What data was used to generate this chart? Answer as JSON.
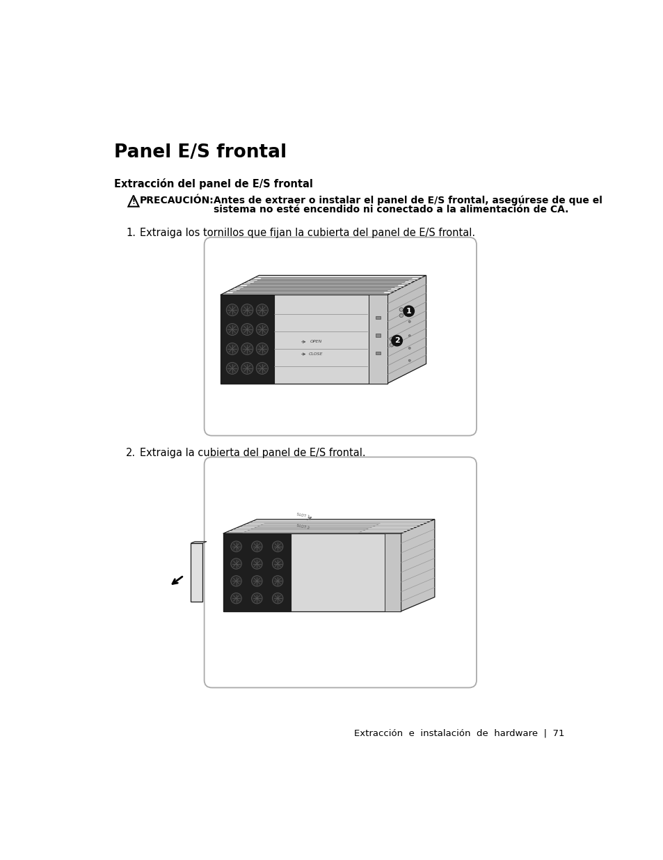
{
  "title": "Panel E/S frontal",
  "subtitle": "Extracción del panel de E/S frontal",
  "caution_label": "PRECAUCIÓN:",
  "caution_line1": "Antes de extraer o instalar el panel de E/S frontal, asegúrese de que el",
  "caution_line2": "sistema no esté encendido ni conectado a la alimentación de CA.",
  "step1_num": "1.",
  "step1_text": "Extraiga los tornillos que fijan la cubierta del panel de E/S frontal.",
  "step2_num": "2.",
  "step2_text": "Extraiga la cubierta del panel de E/S frontal.",
  "footer": "Extracción  e  instalación  de  hardware  |  71",
  "bg_color": "#ffffff",
  "text_color": "#000000"
}
